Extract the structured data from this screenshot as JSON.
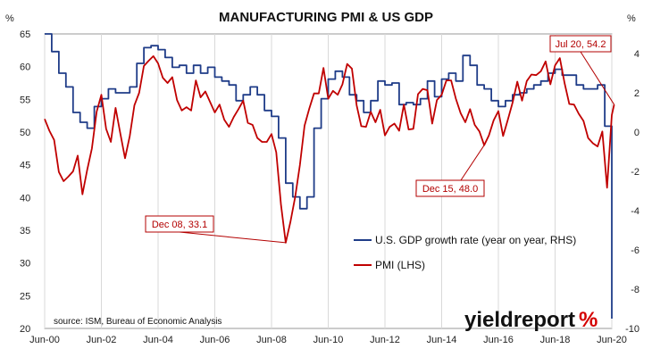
{
  "chart_data": {
    "type": "line",
    "title": "MANUFACTURING PMI & US GDP",
    "left_axis": {
      "unit_label": "%",
      "ylim": [
        20,
        65
      ],
      "ticks": [
        20,
        25,
        30,
        35,
        40,
        45,
        50,
        55,
        60,
        65
      ]
    },
    "right_axis": {
      "unit_label": "%",
      "ylim": [
        -10,
        5
      ],
      "ticks": [
        -10,
        -8,
        -6,
        -4,
        -2,
        0,
        2,
        4
      ]
    },
    "x_ticks": [
      "Jun-00",
      "Jun-02",
      "Jun-04",
      "Jun-06",
      "Jun-08",
      "Jun-10",
      "Jun-12",
      "Jun-14",
      "Jun-16",
      "Jun-18",
      "Jun-20"
    ],
    "xlim": [
      "2000-06",
      "2020-06"
    ],
    "grid": {
      "vertical": true,
      "horizontal": false
    },
    "series": [
      {
        "name": "U.S. GDP growth rate (year on year, RHS)",
        "axis": "right",
        "color": "#1f3c88",
        "step": true,
        "x": [
          "2000-06",
          "2000-09",
          "2000-12",
          "2001-03",
          "2001-06",
          "2001-09",
          "2001-12",
          "2002-03",
          "2002-06",
          "2002-09",
          "2002-12",
          "2003-03",
          "2003-06",
          "2003-09",
          "2003-12",
          "2004-03",
          "2004-06",
          "2004-09",
          "2004-12",
          "2005-03",
          "2005-06",
          "2005-09",
          "2005-12",
          "2006-03",
          "2006-06",
          "2006-09",
          "2006-12",
          "2007-03",
          "2007-06",
          "2007-09",
          "2007-12",
          "2008-03",
          "2008-06",
          "2008-09",
          "2008-12",
          "2009-03",
          "2009-06",
          "2009-09",
          "2009-12",
          "2010-03",
          "2010-06",
          "2010-09",
          "2010-12",
          "2011-03",
          "2011-06",
          "2011-09",
          "2011-12",
          "2012-03",
          "2012-06",
          "2012-09",
          "2012-12",
          "2013-03",
          "2013-06",
          "2013-09",
          "2013-12",
          "2014-03",
          "2014-06",
          "2014-09",
          "2014-12",
          "2015-03",
          "2015-06",
          "2015-09",
          "2015-12",
          "2016-03",
          "2016-06",
          "2016-09",
          "2016-12",
          "2017-03",
          "2017-06",
          "2017-09",
          "2017-12",
          "2018-03",
          "2018-06",
          "2018-09",
          "2018-12",
          "2019-03",
          "2019-06",
          "2019-09",
          "2019-12",
          "2020-03",
          "2020-06"
        ],
        "values": [
          5.0,
          4.1,
          3.0,
          2.3,
          1.0,
          0.5,
          0.2,
          1.3,
          1.7,
          2.2,
          2.0,
          2.0,
          2.3,
          3.5,
          4.3,
          4.4,
          4.2,
          3.8,
          3.3,
          3.4,
          3.0,
          3.4,
          3.0,
          3.3,
          2.8,
          2.6,
          2.4,
          1.6,
          1.9,
          2.3,
          1.9,
          1.1,
          0.8,
          -0.3,
          -2.6,
          -3.3,
          -3.9,
          -3.3,
          0.2,
          1.7,
          2.7,
          3.1,
          2.8,
          1.9,
          1.6,
          1.0,
          1.6,
          2.6,
          2.4,
          2.5,
          1.4,
          1.5,
          1.4,
          1.7,
          2.6,
          1.8,
          2.7,
          3.0,
          2.6,
          3.9,
          3.4,
          2.4,
          2.2,
          1.6,
          1.3,
          1.6,
          1.9,
          2.0,
          2.2,
          2.4,
          2.6,
          3.0,
          3.2,
          2.9,
          2.9,
          2.4,
          2.2,
          2.2,
          2.4,
          0.3,
          -9.5
        ]
      },
      {
        "name": "PMI (LHS)",
        "axis": "left",
        "color": "#c00000",
        "x": [
          "2000-06",
          "2000-08",
          "2000-10",
          "2000-12",
          "2001-02",
          "2001-04",
          "2001-06",
          "2001-08",
          "2001-10",
          "2001-12",
          "2002-02",
          "2002-04",
          "2002-06",
          "2002-08",
          "2002-10",
          "2002-12",
          "2003-02",
          "2003-04",
          "2003-06",
          "2003-08",
          "2003-10",
          "2003-12",
          "2004-02",
          "2004-04",
          "2004-06",
          "2004-08",
          "2004-10",
          "2004-12",
          "2005-02",
          "2005-04",
          "2005-06",
          "2005-08",
          "2005-10",
          "2005-12",
          "2006-02",
          "2006-04",
          "2006-06",
          "2006-08",
          "2006-10",
          "2006-12",
          "2007-02",
          "2007-04",
          "2007-06",
          "2007-08",
          "2007-10",
          "2007-12",
          "2008-02",
          "2008-04",
          "2008-06",
          "2008-08",
          "2008-10",
          "2008-12",
          "2009-02",
          "2009-04",
          "2009-06",
          "2009-08",
          "2009-10",
          "2009-12",
          "2010-02",
          "2010-04",
          "2010-06",
          "2010-08",
          "2010-10",
          "2010-12",
          "2011-02",
          "2011-04",
          "2011-06",
          "2011-08",
          "2011-10",
          "2011-12",
          "2012-02",
          "2012-04",
          "2012-06",
          "2012-08",
          "2012-10",
          "2012-12",
          "2013-02",
          "2013-04",
          "2013-06",
          "2013-08",
          "2013-10",
          "2013-12",
          "2014-02",
          "2014-04",
          "2014-06",
          "2014-08",
          "2014-10",
          "2014-12",
          "2015-02",
          "2015-04",
          "2015-06",
          "2015-08",
          "2015-10",
          "2015-12",
          "2016-02",
          "2016-04",
          "2016-06",
          "2016-08",
          "2016-10",
          "2016-12",
          "2017-02",
          "2017-04",
          "2017-06",
          "2017-08",
          "2017-10",
          "2017-12",
          "2018-02",
          "2018-04",
          "2018-06",
          "2018-08",
          "2018-10",
          "2018-12",
          "2019-02",
          "2019-04",
          "2019-06",
          "2019-08",
          "2019-10",
          "2019-12",
          "2020-02",
          "2020-04",
          "2020-06",
          "2020-07"
        ],
        "values": [
          52.0,
          50.2,
          48.8,
          43.9,
          42.5,
          43.2,
          44.0,
          46.4,
          40.5,
          44.2,
          47.5,
          53.1,
          55.7,
          50.5,
          48.5,
          53.7,
          49.8,
          46.0,
          49.4,
          54.1,
          56.0,
          60.1,
          60.9,
          61.6,
          60.5,
          58.3,
          57.5,
          58.4,
          54.9,
          53.3,
          53.8,
          53.3,
          57.9,
          55.3,
          56.2,
          54.6,
          53.0,
          54.2,
          51.9,
          50.8,
          52.3,
          53.5,
          54.8,
          51.4,
          51.1,
          49.1,
          48.5,
          48.5,
          49.7,
          46.9,
          38.9,
          33.1,
          36.3,
          40.1,
          45.0,
          51.0,
          53.6,
          55.9,
          55.9,
          59.8,
          55.1,
          56.3,
          55.7,
          57.3,
          60.4,
          59.7,
          54.1,
          50.9,
          50.8,
          53.1,
          51.5,
          53.4,
          49.5,
          50.8,
          51.3,
          50.2,
          54.2,
          50.4,
          50.5,
          55.8,
          56.6,
          56.4,
          51.3,
          54.9,
          55.7,
          57.9,
          57.9,
          55.1,
          52.9,
          51.5,
          53.5,
          51.1,
          50.1,
          48.0,
          49.5,
          51.8,
          53.2,
          49.4,
          51.9,
          54.5,
          57.7,
          54.8,
          57.8,
          58.8,
          58.7,
          59.3,
          60.8,
          57.3,
          60.2,
          61.3,
          57.5,
          54.3,
          54.2,
          52.8,
          51.7,
          49.1,
          48.3,
          47.8,
          50.1,
          41.5,
          52.6,
          54.2
        ]
      }
    ],
    "legend_position": "center-right",
    "annotations": [
      {
        "text": "Dec 08, 33.1",
        "x": "2008-12",
        "y": 33.1,
        "axis": "left"
      },
      {
        "text": "Dec 15, 48.0",
        "x": "2015-12",
        "y": 48.0,
        "axis": "left"
      },
      {
        "text": "Jul 20, 54.2",
        "x": "2020-07",
        "y": 54.2,
        "axis": "left"
      }
    ],
    "source": "source: ISM, Bureau of Economic Analysis",
    "logo": {
      "text": "yieldreport",
      "suffix": "%"
    }
  }
}
